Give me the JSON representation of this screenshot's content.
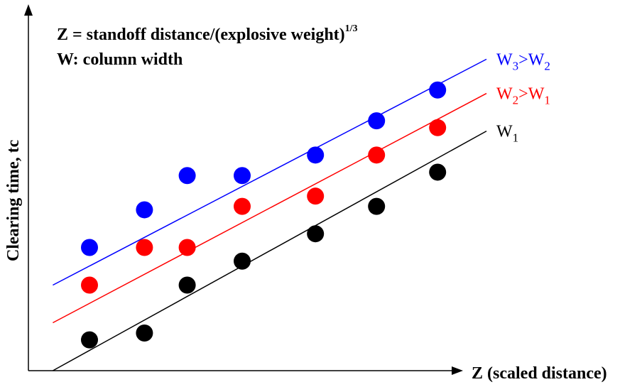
{
  "chart_data": {
    "type": "scatter",
    "annotations": {
      "line1_prefix": "Z = standoff distance/(explosive weight)",
      "line1_superscript": "1/3",
      "line2": "W: column width"
    },
    "xlabel": "Z (scaled distance)",
    "ylabel": "Clearing time, tc",
    "xlim": [
      0,
      100
    ],
    "ylim": [
      0,
      100
    ],
    "grid": false,
    "series": [
      {
        "name_main": "W",
        "name_sub": "3",
        "name_rest_main": ">W",
        "name_rest_sub": "2",
        "color": "#0000ff",
        "points": [
          [
            10,
            36
          ],
          [
            19,
            47
          ],
          [
            26,
            57
          ],
          [
            35,
            57
          ],
          [
            47,
            63
          ],
          [
            57,
            73
          ],
          [
            67,
            82
          ]
        ],
        "trend": [
          [
            4,
            25
          ],
          [
            75,
            91
          ]
        ]
      },
      {
        "name_main": "W",
        "name_sub": "2",
        "name_rest_main": ">W",
        "name_rest_sub": "1",
        "color": "#ff0000",
        "points": [
          [
            10,
            25
          ],
          [
            19,
            36
          ],
          [
            26,
            36
          ],
          [
            35,
            48
          ],
          [
            47,
            51
          ],
          [
            57,
            63
          ],
          [
            67,
            71
          ]
        ],
        "trend": [
          [
            4,
            14
          ],
          [
            75,
            81
          ]
        ]
      },
      {
        "name_main": "W",
        "name_sub": "1",
        "name_rest_main": "",
        "name_rest_sub": "",
        "color": "#000000",
        "points": [
          [
            10,
            9
          ],
          [
            19,
            11
          ],
          [
            26,
            25
          ],
          [
            35,
            32
          ],
          [
            47,
            40
          ],
          [
            57,
            48
          ],
          [
            67,
            58
          ]
        ],
        "trend": [
          [
            4,
            0
          ],
          [
            75,
            70
          ]
        ]
      }
    ]
  }
}
